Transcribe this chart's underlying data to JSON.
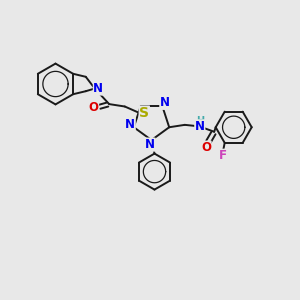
{
  "background_color": "#e8e8e8",
  "bond_color": "#1a1a1a",
  "bond_width": 1.4,
  "atom_colors": {
    "N": "#0000ee",
    "O": "#dd0000",
    "S": "#aaaa00",
    "F": "#cc44bb",
    "H": "#44aaaa",
    "C": "#1a1a1a"
  },
  "font_size": 8.5,
  "font_size_small": 7.0
}
